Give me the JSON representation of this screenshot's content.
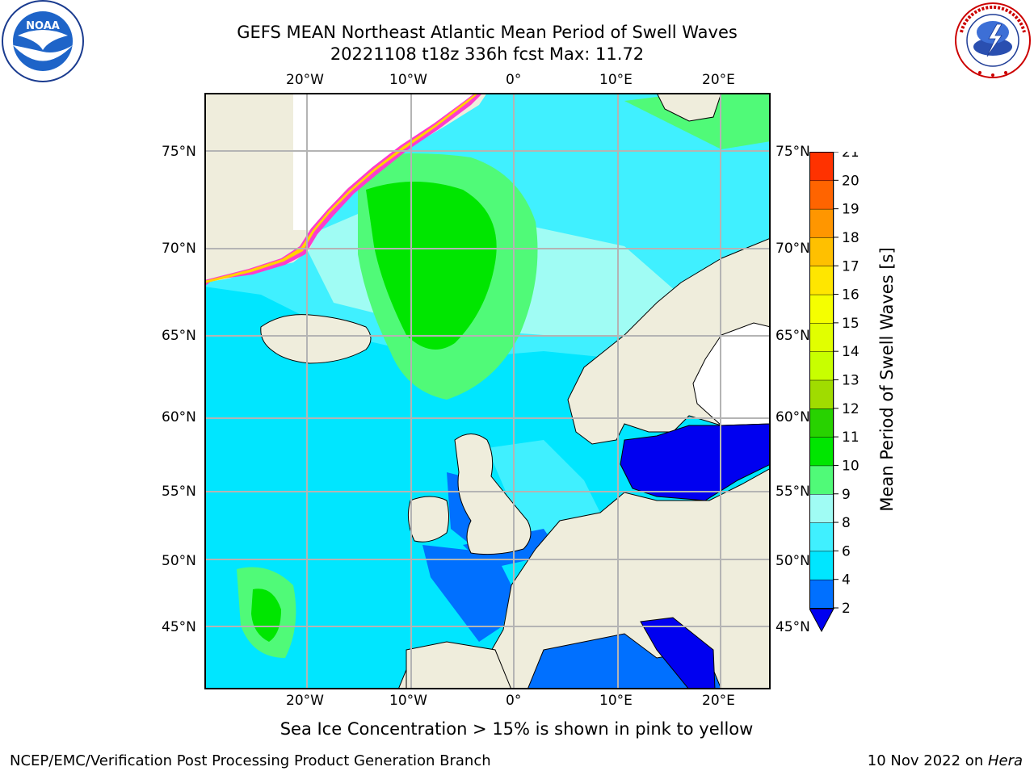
{
  "header": {
    "title_line1": "GEFS MEAN Northeast Atlantic Mean Period of Swell Waves",
    "title_line2": "20221108 t18z 336h fcst   Max: 11.72"
  },
  "logos": {
    "left_text": "NOAA",
    "left_ring_text": "NATIONAL OCEANIC AND ATMOSPHERIC ADMINISTRATION · U.S. DEPARTMENT OF COMMERCE",
    "right_ring_text": "NATIONAL WEATHER SERVICE"
  },
  "map": {
    "lon_ticks": [
      "20°W",
      "10°W",
      "0°",
      "10°E",
      "20°E"
    ],
    "lat_ticks": [
      "75°N",
      "70°N",
      "65°N",
      "60°N",
      "55°N",
      "50°N",
      "45°N"
    ],
    "note": "Sea Ice Concentration > 15% is shown in pink to yellow",
    "colors": {
      "land": "#efeddc",
      "ice_free_white": "#ffffff",
      "gridline": "#b4b4b4"
    }
  },
  "colorbar": {
    "label": "Mean Period of Swell Waves [s]",
    "ticks": [
      "2",
      "4",
      "6",
      "8",
      "9",
      "10",
      "11",
      "12",
      "13",
      "14",
      "15",
      "16",
      "17",
      "18",
      "19",
      "20",
      "21"
    ],
    "colors": [
      "#0070ff",
      "#00e6ff",
      "#40f0ff",
      "#a0fcf4",
      "#50fa78",
      "#00e600",
      "#28d200",
      "#a0dc00",
      "#c8ff00",
      "#e1ff00",
      "#f5ff00",
      "#ffe600",
      "#ffc000",
      "#ff9600",
      "#ff6400",
      "#ff3200",
      "#ff0000"
    ],
    "under_color": "#0000f0"
  },
  "footer": {
    "left": "NCEP/EMC/Verification Post Processing Product Generation Branch",
    "right_date": "10 Nov 2022 on ",
    "right_host": "Hera"
  }
}
